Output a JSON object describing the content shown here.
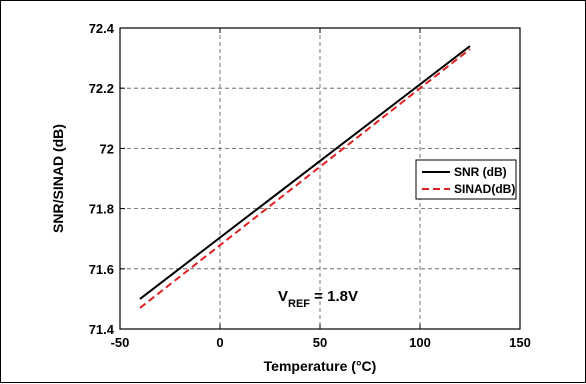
{
  "chart_data": {
    "type": "line",
    "title": "",
    "xlabel": "Temperature (°C)",
    "ylabel": "SNR/SINAD (dB)",
    "xlim": [
      -50,
      150
    ],
    "ylim": [
      71.4,
      72.4
    ],
    "xticks": [
      -50,
      0,
      50,
      100,
      150
    ],
    "yticks": [
      71.4,
      71.6,
      71.8,
      72,
      72.2,
      72.4
    ],
    "xtick_labels": [
      "-50",
      "0",
      "50",
      "100",
      "150"
    ],
    "ytick_labels": [
      "71.4",
      "71.6",
      "71.8",
      "72",
      "72.2",
      "72.4"
    ],
    "grid": true,
    "legend_position": "right",
    "series": [
      {
        "name": "SNR (dB)",
        "color": "#000000",
        "dash": "solid",
        "x": [
          -40,
          125
        ],
        "y": [
          71.5,
          72.34
        ]
      },
      {
        "name": "SINAD(dB)",
        "color": "#e02020",
        "dash": "dashed",
        "x": [
          -40,
          125
        ],
        "y": [
          71.47,
          72.33
        ]
      }
    ],
    "annotation": {
      "main": "V",
      "subscript": "REF",
      "rest": " = 1.8V",
      "x": 20,
      "y": 71.5
    }
  }
}
